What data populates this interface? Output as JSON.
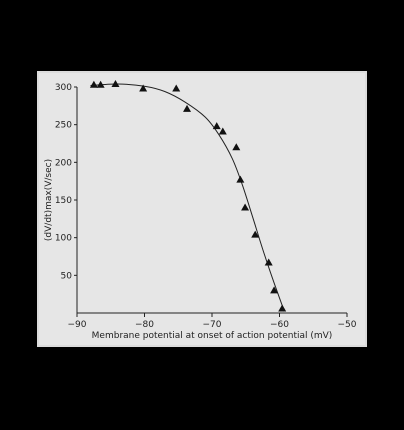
{
  "chart_data": {
    "type": "scatter",
    "title": "",
    "xlabel": "Membrane potential at onset of action potential (mV)",
    "ylabel": "(dV/dt)max(V/sec)",
    "xlim": [
      -90,
      -50
    ],
    "ylim": [
      0,
      300
    ],
    "xticks": [
      -90,
      -80,
      -70,
      -60,
      -50
    ],
    "xtick_labels": [
      "−90",
      "−80",
      "−70",
      "−60",
      "−50"
    ],
    "yticks": [
      50,
      100,
      150,
      200,
      250,
      300
    ],
    "ytick_labels": [
      "50",
      "100",
      "150",
      "200",
      "250",
      "300"
    ],
    "grid": false,
    "legend": "none",
    "colors": {
      "marker": "#111111",
      "curve": "#222222",
      "background": "#e6e6e6"
    },
    "series": [
      {
        "marker": "triangle",
        "points": [
          {
            "x": -87.5,
            "y": 303
          },
          {
            "x": -86.5,
            "y": 303
          },
          {
            "x": -84.3,
            "y": 304
          },
          {
            "x": -80.2,
            "y": 298
          },
          {
            "x": -75.3,
            "y": 298
          },
          {
            "x": -73.7,
            "y": 271
          },
          {
            "x": -69.3,
            "y": 248
          },
          {
            "x": -68.4,
            "y": 241
          },
          {
            "x": -66.4,
            "y": 220
          },
          {
            "x": -65.8,
            "y": 177
          },
          {
            "x": -65.1,
            "y": 140
          },
          {
            "x": -63.6,
            "y": 104
          },
          {
            "x": -61.6,
            "y": 67
          },
          {
            "x": -60.8,
            "y": 30
          },
          {
            "x": -59.6,
            "y": 6
          }
        ]
      }
    ],
    "curve": {
      "points": [
        {
          "x": -88,
          "y": 302
        },
        {
          "x": -84,
          "y": 304
        },
        {
          "x": -80,
          "y": 301
        },
        {
          "x": -77,
          "y": 294
        },
        {
          "x": -74,
          "y": 280
        },
        {
          "x": -71,
          "y": 260
        },
        {
          "x": -69,
          "y": 237
        },
        {
          "x": -67,
          "y": 205
        },
        {
          "x": -65.5,
          "y": 170
        },
        {
          "x": -64,
          "y": 128
        },
        {
          "x": -62.5,
          "y": 85
        },
        {
          "x": -61,
          "y": 45
        },
        {
          "x": -59.6,
          "y": 10
        },
        {
          "x": -59.3,
          "y": 2
        }
      ]
    }
  }
}
